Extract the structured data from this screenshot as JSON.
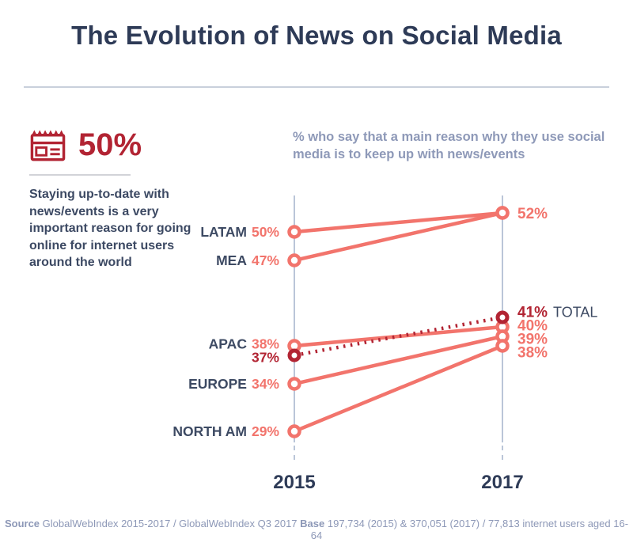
{
  "title": "The Evolution of News on Social Media",
  "sidebar": {
    "icon": "newspaper-icon",
    "stat_value": "50%",
    "description": "Staying up-to-date with news/events is a very important reason for going online for internet users around the world"
  },
  "footer": {
    "source_label": "Source",
    "source_text": "GlobalWebIndex 2015-2017 / GlobalWebIndex Q3 2017",
    "base_label": "Base",
    "base_text": "197,734 (2015) & 370,051 (2017) / 77,813 internet users aged 16-64"
  },
  "colors": {
    "navy": "#2e3b57",
    "label_navy": "#3d4a63",
    "salmon": "#f2746c",
    "dark_red": "#b22433",
    "axis": "#bac5d8",
    "muted_blue": "#8e99b8",
    "divider": "#c9d0dc"
  },
  "chart_data": {
    "type": "line",
    "subtype": "slope",
    "title": "% who say that a main reason why they use social media is to keep up with news/events",
    "x_labels": [
      "2015",
      "2017"
    ],
    "ylim": [
      29,
      52
    ],
    "grid": false,
    "legend_position": "inline-labels",
    "series": [
      {
        "name": "LATAM",
        "values": [
          50,
          52
        ],
        "style": "solid",
        "color": "#f2746c",
        "label_side": "left"
      },
      {
        "name": "MEA",
        "values": [
          47,
          52
        ],
        "style": "solid",
        "color": "#f2746c",
        "label_side": "left"
      },
      {
        "name": "APAC",
        "values": [
          38,
          40
        ],
        "style": "solid",
        "color": "#f2746c",
        "label_side": "left"
      },
      {
        "name": "TOTAL",
        "values": [
          37,
          41
        ],
        "style": "dotted",
        "color": "#b22433",
        "label_side": "right"
      },
      {
        "name": "EUROPE",
        "values": [
          34,
          39
        ],
        "style": "solid",
        "color": "#f2746c",
        "label_side": "left"
      },
      {
        "name": "NORTH AM",
        "values": [
          29,
          38
        ],
        "style": "solid",
        "color": "#f2746c",
        "label_side": "left"
      }
    ]
  }
}
